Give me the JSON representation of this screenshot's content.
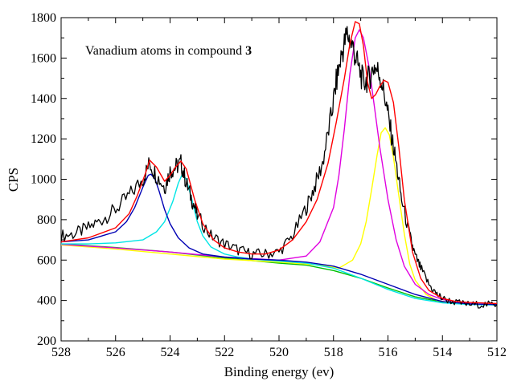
{
  "chart_data": {
    "type": "line",
    "title": "",
    "xlabel": "Binding energy (ev)",
    "ylabel": "CPS",
    "xlim": [
      528,
      512
    ],
    "ylim": [
      200,
      1800
    ],
    "x_reversed": true,
    "xticks": [
      "528",
      "526",
      "524",
      "522",
      "520",
      "518",
      "516",
      "514",
      "512"
    ],
    "yticks": [
      "200",
      "400",
      "600",
      "800",
      "1000",
      "1200",
      "1400",
      "1600",
      "1800"
    ],
    "annotation": {
      "text": "Vanadium atoms in compound ",
      "bold": "3"
    },
    "legend": "none",
    "grid": false,
    "series": [
      {
        "color": "#000000",
        "role": "raw data (noisy)",
        "x": [
          528,
          527.5,
          527,
          526.5,
          526,
          525.5,
          525,
          524.75,
          524.5,
          524.2,
          524,
          523.8,
          523.6,
          523.4,
          523.2,
          523,
          522.5,
          522,
          521.5,
          521,
          520.5,
          520,
          519.5,
          519,
          518.7,
          518.4,
          518.1,
          517.9,
          517.7,
          517.5,
          517.3,
          517.1,
          516.9,
          516.7,
          516.5,
          516.3,
          516.1,
          515.9,
          515.7,
          515.5,
          515.2,
          515,
          514.8,
          514.5,
          514.2,
          514,
          513.5,
          513,
          512.5,
          512
        ],
        "y": [
          720,
          730,
          760,
          800,
          850,
          920,
          1000,
          1080,
          1020,
          960,
          1040,
          1060,
          1080,
          980,
          900,
          820,
          720,
          680,
          650,
          630,
          630,
          640,
          720,
          860,
          960,
          1080,
          1300,
          1480,
          1620,
          1720,
          1660,
          1560,
          1480,
          1500,
          1560,
          1520,
          1400,
          1240,
          1080,
          900,
          720,
          620,
          560,
          480,
          430,
          410,
          390,
          380,
          380,
          380
        ]
      },
      {
        "color": "#ff0000",
        "role": "envelope fit",
        "x": [
          528,
          527,
          526,
          525.5,
          525.2,
          524.9,
          524.75,
          524.5,
          524.2,
          524,
          523.8,
          523.6,
          523.4,
          523.1,
          522.8,
          522.4,
          522,
          521.5,
          521,
          520.5,
          520,
          519.5,
          519,
          518.6,
          518.2,
          517.9,
          517.6,
          517.4,
          517.2,
          517.05,
          516.9,
          516.75,
          516.6,
          516.45,
          516.3,
          516.15,
          516,
          515.8,
          515.6,
          515.4,
          515.1,
          514.8,
          514.5,
          514,
          513.5,
          513,
          512
        ],
        "y": [
          690,
          710,
          760,
          830,
          920,
          1030,
          1095,
          1060,
          990,
          1020,
          1060,
          1090,
          1050,
          900,
          780,
          700,
          660,
          640,
          630,
          630,
          650,
          700,
          790,
          900,
          1080,
          1280,
          1500,
          1670,
          1780,
          1770,
          1660,
          1480,
          1400,
          1420,
          1460,
          1490,
          1480,
          1380,
          1160,
          900,
          640,
          510,
          450,
          410,
          395,
          390,
          385
        ]
      },
      {
        "color": "#0000b4",
        "role": "V 2p1/2 component A",
        "x": [
          528,
          527,
          526,
          525.6,
          525.3,
          525,
          524.8,
          524.7,
          524.55,
          524.4,
          524.2,
          524,
          523.7,
          523.3,
          522.8,
          522,
          521,
          520,
          519,
          518,
          517,
          516,
          515,
          514,
          513,
          512
        ],
        "y": [
          690,
          700,
          740,
          790,
          860,
          960,
          1020,
          1025,
          1000,
          940,
          850,
          780,
          710,
          660,
          630,
          615,
          605,
          600,
          590,
          570,
          530,
          480,
          430,
          395,
          383,
          380
        ]
      },
      {
        "color": "#00e5e5",
        "role": "V 2p1/2 component B",
        "x": [
          528,
          527,
          526,
          525,
          524.5,
          524.2,
          523.9,
          523.7,
          523.55,
          523.4,
          523.2,
          523,
          522.8,
          522.5,
          522,
          521.5,
          521,
          520,
          519,
          518,
          517,
          516,
          515,
          514,
          513,
          512
        ],
        "y": [
          680,
          680,
          685,
          700,
          740,
          790,
          890,
          980,
          1025,
          1000,
          900,
          790,
          720,
          665,
          630,
          615,
          605,
          595,
          585,
          560,
          510,
          455,
          410,
          388,
          380,
          378
        ]
      },
      {
        "color": "#e000e0",
        "role": "V 2p3/2 component A",
        "x": [
          528,
          526,
          524,
          522,
          520,
          519,
          518.5,
          518,
          517.8,
          517.6,
          517.4,
          517.2,
          517.05,
          516.9,
          516.7,
          516.5,
          516.3,
          516,
          515.7,
          515.4,
          515,
          514.5,
          514,
          513,
          512
        ],
        "y": [
          678,
          660,
          640,
          615,
          600,
          620,
          690,
          860,
          1020,
          1250,
          1520,
          1700,
          1740,
          1700,
          1560,
          1360,
          1160,
          900,
          700,
          570,
          480,
          430,
          405,
          385,
          378
        ]
      },
      {
        "color": "#ffff00",
        "role": "V 2p3/2 component B",
        "x": [
          528,
          526,
          524,
          522,
          520,
          518.5,
          517.8,
          517.3,
          517,
          516.8,
          516.6,
          516.4,
          516.25,
          516.1,
          515.95,
          515.8,
          515.6,
          515.4,
          515.2,
          515,
          514.6,
          514.2,
          513.5,
          512
        ],
        "y": [
          675,
          655,
          630,
          605,
          590,
          575,
          560,
          600,
          680,
          790,
          950,
          1120,
          1230,
          1255,
          1220,
          1110,
          920,
          730,
          580,
          500,
          430,
          400,
          385,
          380
        ]
      },
      {
        "color": "#00c000",
        "role": "background",
        "x": [
          528,
          526,
          524,
          522,
          520,
          519,
          518,
          517,
          516,
          515,
          514,
          513,
          512
        ],
        "y": [
          680,
          662,
          640,
          610,
          585,
          575,
          548,
          510,
          462,
          418,
          392,
          382,
          378
        ]
      }
    ]
  }
}
